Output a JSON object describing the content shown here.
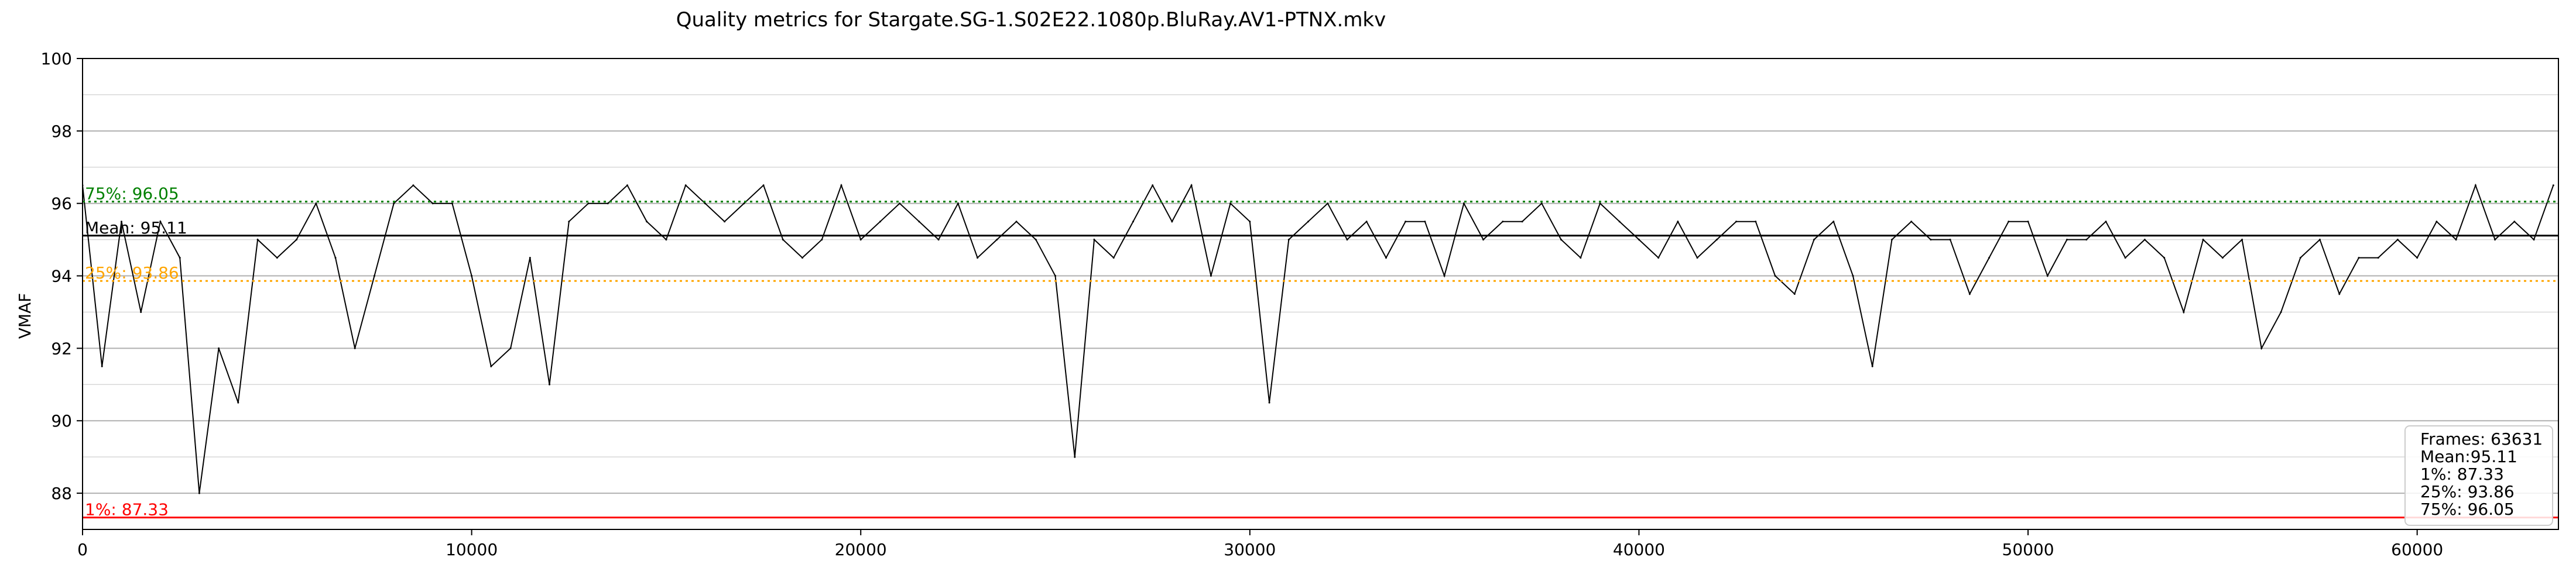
{
  "chart_data": {
    "type": "line",
    "title": "Quality metrics for Stargate.SG-1.S02E22.1080p.BluRay.AV1-PTNX.mkv",
    "xlabel": "",
    "ylabel": "VMAF",
    "xlim": [
      0,
      63631
    ],
    "ylim": [
      87,
      100
    ],
    "x_ticks": [
      0,
      10000,
      20000,
      30000,
      40000,
      50000,
      60000
    ],
    "x_tick_labels": [
      "0",
      "10000",
      "20000",
      "30000",
      "40000",
      "50000",
      "60000"
    ],
    "y_ticks": [
      88,
      90,
      92,
      94,
      96,
      98,
      100
    ],
    "y_tick_labels": [
      "88",
      "90",
      "92",
      "94",
      "96",
      "98",
      "100"
    ],
    "grid": true,
    "series": [
      {
        "name": "",
        "color": "#000000",
        "x": [
          0,
          500,
          1000,
          1500,
          2000,
          2500,
          3000,
          3500,
          4000,
          4500,
          5000,
          5500,
          6000,
          6500,
          7000,
          7500,
          8000,
          8500,
          9000,
          9500,
          10000,
          10500,
          11000,
          11500,
          12000,
          12500,
          13000,
          13500,
          14000,
          14500,
          15000,
          15500,
          16000,
          16500,
          17000,
          17500,
          18000,
          18500,
          19000,
          19500,
          20000,
          20500,
          21000,
          21500,
          22000,
          22500,
          23000,
          23500,
          24000,
          24500,
          25000,
          25500,
          26000,
          26500,
          27000,
          27500,
          28000,
          28500,
          29000,
          29500,
          30000,
          30500,
          31000,
          31500,
          32000,
          32500,
          33000,
          33500,
          34000,
          34500,
          35000,
          35500,
          36000,
          36500,
          37000,
          37500,
          38000,
          38500,
          39000,
          39500,
          40000,
          40500,
          41000,
          41500,
          42000,
          42500,
          43000,
          43500,
          44000,
          44500,
          45000,
          45500,
          46000,
          46500,
          47000,
          47500,
          48000,
          48500,
          49000,
          49500,
          50000,
          50500,
          51000,
          51500,
          52000,
          52500,
          53000,
          53500,
          54000,
          54500,
          55000,
          55500,
          56000,
          56500,
          57000,
          57500,
          58000,
          58500,
          59000,
          59500,
          60000,
          60500,
          61000,
          61500,
          62000,
          62500,
          63000,
          63500
        ],
        "y": [
          96.5,
          91.5,
          95.5,
          93.0,
          95.5,
          94.5,
          88.0,
          92.0,
          90.5,
          95.0,
          94.5,
          95.0,
          96.0,
          94.5,
          92.0,
          94.0,
          96.0,
          96.5,
          96.0,
          96.0,
          94.0,
          91.5,
          92.0,
          94.5,
          91.0,
          95.5,
          96.0,
          96.0,
          96.5,
          95.5,
          95.0,
          96.5,
          96.0,
          95.5,
          96.0,
          96.5,
          95.0,
          94.5,
          95.0,
          96.5,
          95.0,
          95.5,
          96.0,
          95.5,
          95.0,
          96.0,
          94.5,
          95.0,
          95.5,
          95.0,
          94.0,
          89.0,
          95.0,
          94.5,
          95.5,
          96.5,
          95.5,
          96.5,
          94.0,
          96.0,
          95.5,
          90.5,
          95.0,
          95.5,
          96.0,
          95.0,
          95.5,
          94.5,
          95.5,
          95.5,
          94.0,
          96.0,
          95.0,
          95.5,
          95.5,
          96.0,
          95.0,
          94.5,
          96.0,
          95.5,
          95.0,
          94.5,
          95.5,
          94.5,
          95.0,
          95.5,
          95.5,
          94.0,
          93.5,
          95.0,
          95.5,
          94.0,
          91.5,
          95.0,
          95.5,
          95.0,
          95.0,
          93.5,
          94.5,
          95.5,
          95.5,
          94.0,
          95.0,
          95.0,
          95.5,
          94.5,
          95.0,
          94.5,
          93.0,
          95.0,
          94.5,
          95.0,
          92.0,
          93.0,
          94.5,
          95.0,
          93.5,
          94.5,
          94.5,
          95.0,
          94.5,
          95.5,
          95.0,
          96.5,
          95.0,
          95.5,
          95.0,
          96.5
        ]
      }
    ],
    "hlines": [
      {
        "name": "Mean",
        "value": 95.11,
        "label": "Mean: 95.11",
        "color": "#000000",
        "style": "solid"
      },
      {
        "name": "1%",
        "value": 87.33,
        "label": "1%: 87.33",
        "color": "#ff0000",
        "style": "solid"
      },
      {
        "name": "25%",
        "value": 93.86,
        "label": "25%: 93.86",
        "color": "#ffa500",
        "style": "dotted"
      },
      {
        "name": "75%",
        "value": 96.05,
        "label": "75%: 96.05",
        "color": "#008000",
        "style": "dotted"
      }
    ],
    "stats_box": {
      "placement": "bottom-right",
      "lines": [
        "Frames: 63631",
        "Mean:95.11",
        "1%: 87.33",
        "25%: 93.86",
        "75%: 96.05"
      ]
    }
  }
}
